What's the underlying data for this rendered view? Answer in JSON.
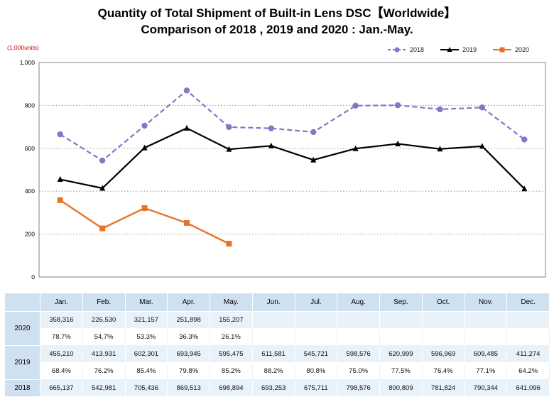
{
  "title": {
    "line1": "Quantity of Total Shipment of Built-in Lens DSC【Worldwide】",
    "line2": "Comparison of 2018 , 2019 and 2020 : Jan.-May."
  },
  "chart": {
    "unit_label": "(1,000units)",
    "y_ticks": [
      "0",
      "200",
      "400",
      "600",
      "800",
      "1,000"
    ],
    "legend": [
      {
        "label": "2018",
        "color": "#7b7bc8",
        "style": "dashed",
        "marker": "circle"
      },
      {
        "label": "2019",
        "color": "#000000",
        "style": "solid",
        "marker": "triangle"
      },
      {
        "label": "2020",
        "color": "#e8722a",
        "style": "solid",
        "marker": "square"
      }
    ]
  },
  "chart_data": {
    "type": "line",
    "title": "Quantity of Total Shipment of Built-in Lens DSC【Worldwide】 Comparison of 2018 , 2019 and 2020 : Jan.-May.",
    "ylabel": "(1,000units)",
    "ylim": [
      0,
      1000
    ],
    "grid": true,
    "legend_position": "top-right",
    "categories": [
      "Jan.",
      "Feb.",
      "Mar.",
      "Apr.",
      "May.",
      "Jun.",
      "Jul.",
      "Aug.",
      "Sep.",
      "Oct.",
      "Nov.",
      "Dec."
    ],
    "series": [
      {
        "name": "2018",
        "values": [
          665.137,
          542.981,
          705.436,
          869.513,
          698.894,
          693.253,
          675.711,
          798.576,
          800.809,
          781.824,
          790.344,
          641.096
        ]
      },
      {
        "name": "2019",
        "values": [
          455.21,
          413.931,
          602.301,
          693.945,
          595.475,
          611.581,
          545.721,
          598.576,
          620.999,
          596.969,
          609.485,
          411.274
        ]
      },
      {
        "name": "2020",
        "values": [
          358.316,
          226.53,
          321.157,
          251.898,
          155.207,
          null,
          null,
          null,
          null,
          null,
          null,
          null
        ]
      }
    ]
  },
  "table": {
    "columns": [
      "",
      "Jan.",
      "Feb.",
      "Mar.",
      "Apr.",
      "May.",
      "Jun.",
      "Jul.",
      "Aug.",
      "Sep.",
      "Oct.",
      "Nov.",
      "Dec."
    ],
    "row_groups": [
      {
        "year": "2020",
        "values": [
          "358,316",
          "226,530",
          "321,157",
          "251,898",
          "155,207",
          "",
          "",
          "",
          "",
          "",
          "",
          ""
        ],
        "percents": [
          "78.7%",
          "54.7%",
          "53.3%",
          "36.3%",
          "26.1%",
          "",
          "",
          "",
          "",
          "",
          "",
          ""
        ]
      },
      {
        "year": "2019",
        "values": [
          "455,210",
          "413,931",
          "602,301",
          "693,945",
          "595,475",
          "611,581",
          "545,721",
          "598,576",
          "620,999",
          "596,969",
          "609,485",
          "411,274"
        ],
        "percents": [
          "68.4%",
          "76.2%",
          "85.4%",
          "79.8%",
          "85.2%",
          "88.2%",
          "80.8%",
          "75.0%",
          "77.5%",
          "76.4%",
          "77.1%",
          "64.2%"
        ]
      },
      {
        "year": "2018",
        "values": [
          "665,137",
          "542,981",
          "705,436",
          "869,513",
          "698,894",
          "693,253",
          "675,711",
          "798,576",
          "800,809",
          "781,824",
          "790,344",
          "641,096"
        ],
        "percents": null
      }
    ]
  }
}
